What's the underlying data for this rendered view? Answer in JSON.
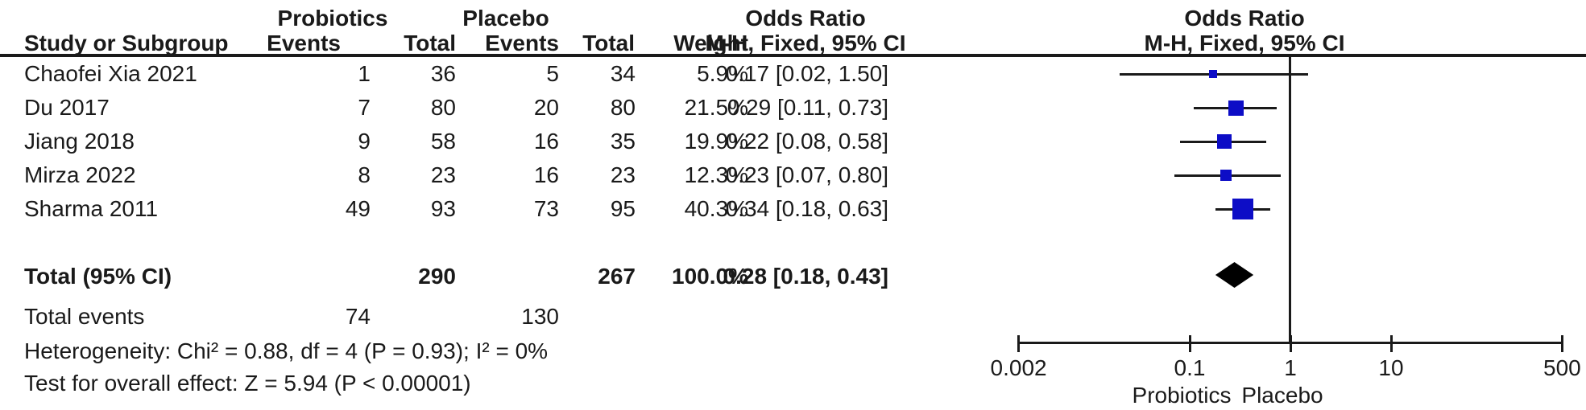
{
  "header": {
    "group": {
      "probiotics": "Probiotics",
      "placebo": "Placebo",
      "odds_ratio_text_col": "Odds Ratio",
      "odds_ratio_plot_col": "Odds Ratio"
    },
    "cols": {
      "study": "Study or Subgroup",
      "probiotics_events": "Events",
      "probiotics_total": "Total",
      "placebo_events": "Events",
      "placebo_total": "Total",
      "weight": "Weight",
      "mh_fixed_ci": "M-H, Fixed, 95% CI",
      "mh_fixed_ci_plot": "M-H, Fixed, 95% CI"
    }
  },
  "rows": [
    {
      "study": "Chaofei Xia 2021",
      "probiotics_events": "1",
      "probiotics_total": "36",
      "placebo_events": "5",
      "placebo_total": "34",
      "weight": "5.9%",
      "or_text": "0.17 [0.02, 1.50]"
    },
    {
      "study": "Du 2017",
      "probiotics_events": "7",
      "probiotics_total": "80",
      "placebo_events": "20",
      "placebo_total": "80",
      "weight": "21.5%",
      "or_text": "0.29 [0.11, 0.73]"
    },
    {
      "study": "Jiang 2018",
      "probiotics_events": "9",
      "probiotics_total": "58",
      "placebo_events": "16",
      "placebo_total": "35",
      "weight": "19.9%",
      "or_text": "0.22 [0.08, 0.58]"
    },
    {
      "study": "Mirza 2022",
      "probiotics_events": "8",
      "probiotics_total": "23",
      "placebo_events": "16",
      "placebo_total": "23",
      "weight": "12.3%",
      "or_text": "0.23 [0.07, 0.80]"
    },
    {
      "study": "Sharma 2011",
      "probiotics_events": "49",
      "probiotics_total": "93",
      "placebo_events": "73",
      "placebo_total": "95",
      "weight": "40.3%",
      "or_text": "0.34 [0.18, 0.63]"
    }
  ],
  "total": {
    "label": "Total (95% CI)",
    "probiotics_total": "290",
    "placebo_total": "267",
    "weight": "100.0%",
    "or_text": "0.28 [0.18, 0.43]"
  },
  "total_events": {
    "label": "Total events",
    "probiotics_events": "74",
    "placebo_events": "130"
  },
  "footnotes": {
    "heterogeneity": "Heterogeneity: Chi² = 0.88, df = 4 (P = 0.93); I² = 0%",
    "overall_effect": "Test for overall effect: Z = 5.94 (P < 0.00001)"
  },
  "axis": {
    "tick_labels": [
      "0.002",
      "0.1",
      "1",
      "10",
      "500"
    ],
    "favours_left": "Probiotics",
    "favours_right": "Placebo"
  },
  "colors": {
    "marker_blue": "#0d0dc6",
    "diamond_black": "#000000",
    "line_black": "#1a1a1a"
  },
  "chart_data": {
    "type": "forest",
    "title": "Odds Ratio  M-H, Fixed, 95% CI",
    "x_scale": "log",
    "x_ticks": [
      0.002,
      0.1,
      1,
      10,
      500
    ],
    "x_range": [
      0.002,
      500
    ],
    "null_line": 1,
    "x_axis_group_labels": {
      "left_of_1": "Probiotics",
      "right_of_1": "Placebo"
    },
    "studies": [
      {
        "study": "Chaofei Xia 2021",
        "probiotics_events": 1,
        "probiotics_total": 36,
        "placebo_events": 5,
        "placebo_total": 34,
        "weight_pct": 5.9,
        "or": 0.17,
        "ci_low": 0.02,
        "ci_high": 1.5
      },
      {
        "study": "Du 2017",
        "probiotics_events": 7,
        "probiotics_total": 80,
        "placebo_events": 20,
        "placebo_total": 80,
        "weight_pct": 21.5,
        "or": 0.29,
        "ci_low": 0.11,
        "ci_high": 0.73
      },
      {
        "study": "Jiang 2018",
        "probiotics_events": 9,
        "probiotics_total": 58,
        "placebo_events": 16,
        "placebo_total": 35,
        "weight_pct": 19.9,
        "or": 0.22,
        "ci_low": 0.08,
        "ci_high": 0.58
      },
      {
        "study": "Mirza 2022",
        "probiotics_events": 8,
        "probiotics_total": 23,
        "placebo_events": 16,
        "placebo_total": 23,
        "weight_pct": 12.3,
        "or": 0.23,
        "ci_low": 0.07,
        "ci_high": 0.8
      },
      {
        "study": "Sharma 2011",
        "probiotics_events": 49,
        "probiotics_total": 93,
        "placebo_events": 73,
        "placebo_total": 95,
        "weight_pct": 40.3,
        "or": 0.34,
        "ci_low": 0.18,
        "ci_high": 0.63
      }
    ],
    "total": {
      "or": 0.28,
      "ci_low": 0.18,
      "ci_high": 0.43,
      "probiotics_events": 74,
      "probiotics_total": 290,
      "placebo_events": 130,
      "placebo_total": 267,
      "weight_pct": 100.0
    },
    "heterogeneity": "Chi² = 0.88, df = 4 (P = 0.93); I² = 0%",
    "overall_effect_test": "Z = 5.94 (P < 0.00001)"
  }
}
